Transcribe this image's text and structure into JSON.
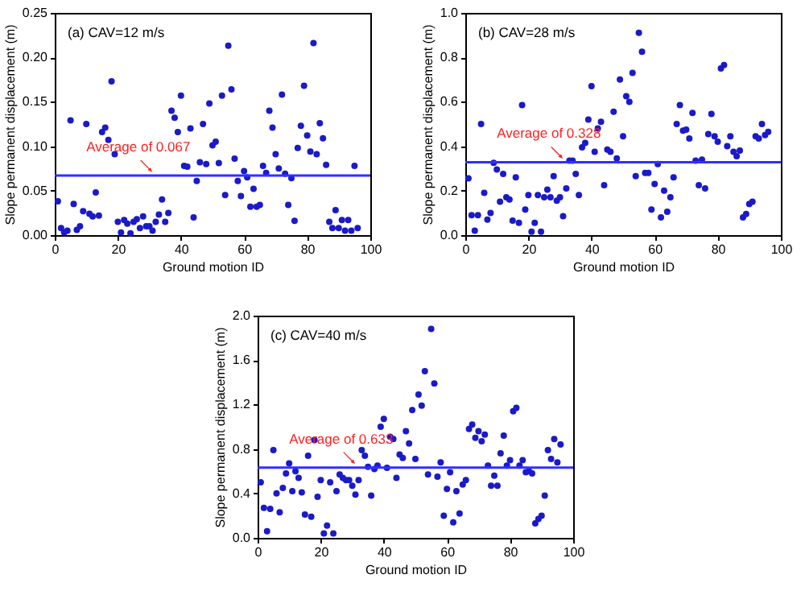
{
  "chart_data": [
    {
      "type": "scatter",
      "title": "(a) CAV=12 m/s",
      "xlabel": "Ground motion ID",
      "ylabel": "Slope permanent displacement (m)",
      "marker": "circle",
      "grid": false,
      "x": [
        1,
        2,
        3,
        4,
        5,
        6,
        7,
        8,
        9,
        10,
        11,
        12,
        13,
        14,
        15,
        16,
        17,
        18,
        19,
        20,
        21,
        22,
        23,
        24,
        25,
        26,
        27,
        28,
        29,
        30,
        31,
        32,
        33,
        34,
        35,
        36,
        37,
        38,
        39,
        40,
        41,
        42,
        43,
        44,
        45,
        46,
        47,
        48,
        49,
        50,
        51,
        52,
        53,
        54,
        55,
        56,
        57,
        58,
        59,
        60,
        61,
        62,
        63,
        64,
        65,
        66,
        67,
        68,
        69,
        70,
        71,
        72,
        73,
        74,
        75,
        76,
        77,
        78,
        79,
        80,
        81,
        82,
        83,
        84,
        85,
        86,
        87,
        88,
        89,
        90,
        91,
        92,
        93,
        94,
        95,
        96
      ],
      "xlim": [
        0,
        100
      ],
      "xticks": [
        0,
        20,
        40,
        60,
        80,
        100
      ],
      "ylim": [
        0,
        0.25
      ],
      "yticks": [
        {
          "value": 0,
          "label": "0.00"
        },
        {
          "value": 0.05,
          "label": "0.05"
        },
        {
          "value": 0.1,
          "label": "0.10"
        },
        {
          "value": 0.15,
          "label": "0.15"
        },
        {
          "value": 0.2,
          "label": "0.20"
        },
        {
          "value": 0.25,
          "label": "0.25"
        }
      ],
      "series": [
        {
          "color": "#1a1ac8",
          "values": [
            0.038,
            0.008,
            0.003,
            0.005,
            0.129,
            0.035,
            0.006,
            0.01,
            0.027,
            0.125,
            0.024,
            0.021,
            0.048,
            0.022,
            0.116,
            0.121,
            0.107,
            0.173,
            0.091,
            0.015,
            0.003,
            0.017,
            0.013,
            0.002,
            0.015,
            0.018,
            0.008,
            0.021,
            0.01,
            0.01,
            0.005,
            0.015,
            0.023,
            0.04,
            0.015,
            0.025,
            0.14,
            0.132,
            0.116,
            0.157,
            0.078,
            0.077,
            0.12,
            0.02,
            0.061,
            0.082,
            0.125,
            0.08,
            0.148,
            0.101,
            0.105,
            0.081,
            0.157,
            0.045,
            0.213,
            0.164,
            0.086,
            0.061,
            0.044,
            0.072,
            0.065,
            0.032,
            0.052,
            0.032,
            0.034,
            0.078,
            0.07,
            0.14,
            0.121,
            0.091,
            0.075,
            0.158,
            0.069,
            0.034,
            0.064,
            0.016,
            0.098,
            0.123,
            0.168,
            0.112,
            0.094,
            0.216,
            0.091,
            0.126,
            0.109,
            0.079,
            0.015,
            0.008,
            0.028,
            0.008,
            0.017,
            0.005,
            0.017,
            0.005,
            0.078,
            0.008
          ]
        }
      ],
      "ref_lines": [
        {
          "axis": "y",
          "value": 0.067,
          "label": "Average of 0.067",
          "color": "#3030ff"
        }
      ]
    },
    {
      "type": "scatter",
      "title": "(b) CAV=28 m/s",
      "xlabel": "Ground motion ID",
      "ylabel": "Slope permanent displacement (m)",
      "marker": "circle",
      "grid": false,
      "x": [
        1,
        2,
        3,
        4,
        5,
        6,
        7,
        8,
        9,
        10,
        11,
        12,
        13,
        14,
        15,
        16,
        17,
        18,
        19,
        20,
        21,
        22,
        23,
        24,
        25,
        26,
        27,
        28,
        29,
        30,
        31,
        32,
        33,
        34,
        35,
        36,
        37,
        38,
        39,
        40,
        41,
        42,
        43,
        44,
        45,
        46,
        47,
        48,
        49,
        50,
        51,
        52,
        53,
        54,
        55,
        56,
        57,
        58,
        59,
        60,
        61,
        62,
        63,
        64,
        65,
        66,
        67,
        68,
        69,
        70,
        71,
        72,
        73,
        74,
        75,
        76,
        77,
        78,
        79,
        80,
        81,
        82,
        83,
        84,
        85,
        86,
        87,
        88,
        89,
        90,
        91,
        92,
        93,
        94,
        95,
        96
      ],
      "xlim": [
        0,
        100
      ],
      "xticks": [
        0,
        20,
        40,
        60,
        80,
        100
      ],
      "ylim": [
        0,
        1
      ],
      "yticks": [
        {
          "value": 0,
          "label": "0.0"
        },
        {
          "value": 0.2,
          "label": "0.2"
        },
        {
          "value": 0.4,
          "label": "0.4"
        },
        {
          "value": 0.6,
          "label": "0.6"
        },
        {
          "value": 0.8,
          "label": "0.8"
        },
        {
          "value": 1,
          "label": "1.0"
        }
      ],
      "series": [
        {
          "color": "#1a1ac8",
          "values": [
            0.255,
            0.09,
            0.02,
            0.09,
            0.5,
            0.19,
            0.07,
            0.1,
            0.325,
            0.295,
            0.15,
            0.275,
            0.17,
            0.16,
            0.065,
            0.26,
            0.055,
            0.585,
            0.115,
            0.18,
            0.015,
            0.055,
            0.18,
            0.015,
            0.17,
            0.205,
            0.17,
            0.265,
            0.155,
            0.17,
            0.085,
            0.21,
            0.335,
            0.335,
            0.275,
            0.18,
            0.395,
            0.415,
            0.52,
            0.67,
            0.375,
            0.48,
            0.51,
            0.225,
            0.385,
            0.375,
            0.555,
            0.345,
            0.7,
            0.445,
            0.625,
            0.6,
            0.73,
            0.265,
            0.91,
            0.825,
            0.28,
            0.28,
            0.115,
            0.23,
            0.32,
            0.08,
            0.2,
            0.105,
            0.17,
            0.26,
            0.5,
            0.585,
            0.47,
            0.475,
            0.435,
            0.55,
            0.335,
            0.225,
            0.34,
            0.21,
            0.455,
            0.545,
            0.445,
            0.42,
            0.75,
            0.765,
            0.4,
            0.445,
            0.375,
            0.355,
            0.38,
            0.08,
            0.095,
            0.14,
            0.15,
            0.445,
            0.435,
            0.5,
            0.45,
            0.465
          ]
        }
      ],
      "ref_lines": [
        {
          "axis": "y",
          "value": 0.328,
          "label": "Average of 0.328",
          "color": "#3030ff"
        }
      ]
    },
    {
      "type": "scatter",
      "title": "(c) CAV=40 m/s",
      "xlabel": "Ground motion ID",
      "ylabel": "Slope permanent displacement (m)",
      "marker": "circle",
      "grid": false,
      "x": [
        1,
        2,
        3,
        4,
        5,
        6,
        7,
        8,
        9,
        10,
        11,
        12,
        13,
        14,
        15,
        16,
        17,
        18,
        19,
        20,
        21,
        22,
        23,
        24,
        25,
        26,
        27,
        28,
        29,
        30,
        31,
        32,
        33,
        34,
        35,
        36,
        37,
        38,
        39,
        40,
        41,
        42,
        43,
        44,
        45,
        46,
        47,
        48,
        49,
        50,
        51,
        52,
        53,
        54,
        55,
        56,
        57,
        58,
        59,
        60,
        61,
        62,
        63,
        64,
        65,
        66,
        67,
        68,
        69,
        70,
        71,
        72,
        73,
        74,
        75,
        76,
        77,
        78,
        79,
        80,
        81,
        82,
        83,
        84,
        85,
        86,
        87,
        88,
        89,
        90,
        91,
        92,
        93,
        94,
        95,
        96
      ],
      "xlim": [
        0,
        100
      ],
      "xticks": [
        0,
        20,
        40,
        60,
        80,
        100
      ],
      "ylim": [
        0,
        2
      ],
      "yticks": [
        {
          "value": 0,
          "label": "0.0"
        },
        0.4,
        0.8,
        1.2,
        1.6,
        {
          "value": 2,
          "label": "2.0"
        }
      ],
      "series": [
        {
          "color": "#1a1ac8",
          "values": [
            0.5,
            0.27,
            0.06,
            0.26,
            0.79,
            0.4,
            0.23,
            0.45,
            0.58,
            0.67,
            0.42,
            0.6,
            0.54,
            0.41,
            0.21,
            0.74,
            0.19,
            0.88,
            0.37,
            0.52,
            0.04,
            0.11,
            0.5,
            0.04,
            0.42,
            0.57,
            0.54,
            0.52,
            0.52,
            0.47,
            0.39,
            0.52,
            0.79,
            0.74,
            0.64,
            0.38,
            0.62,
            0.65,
            1.0,
            1.07,
            0.63,
            0.91,
            0.89,
            0.54,
            0.75,
            0.72,
            0.96,
            0.85,
            1.15,
            0.71,
            1.29,
            1.19,
            1.5,
            0.57,
            1.88,
            1.39,
            0.55,
            0.68,
            0.2,
            0.44,
            0.59,
            0.14,
            0.42,
            0.22,
            0.48,
            0.52,
            0.98,
            1.02,
            0.9,
            0.96,
            0.87,
            0.93,
            0.65,
            0.47,
            0.56,
            0.47,
            0.76,
            0.92,
            0.65,
            0.7,
            1.14,
            1.17,
            0.65,
            0.7,
            0.59,
            0.6,
            0.58,
            0.13,
            0.17,
            0.2,
            0.38,
            0.79,
            0.71,
            0.89,
            0.68,
            0.84
          ]
        }
      ],
      "ref_lines": [
        {
          "axis": "y",
          "value": 0.633,
          "label": "Average of 0.633",
          "color": "#3030ff"
        }
      ]
    }
  ]
}
